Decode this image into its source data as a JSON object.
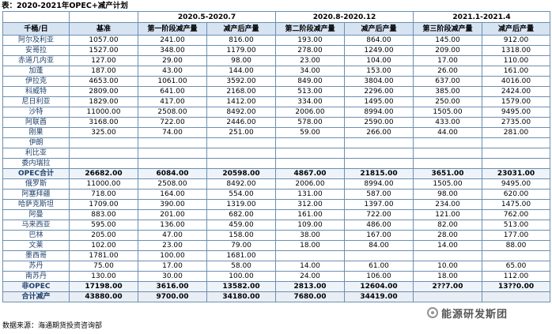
{
  "title": "表：2020-2021年OPEC+减产计划",
  "header": {
    "periods": [
      "2020.5-2020.7",
      "2020.8-2020.12",
      "2021.1-2021.4"
    ],
    "unit_col": "千桶/日",
    "base_col": "基准",
    "phase_cols": [
      "第一阶段减产量",
      "减产后产量",
      "第二阶段减产量",
      "减产后产量",
      "第三阶段减产量",
      "减产后产量"
    ]
  },
  "rows": [
    {
      "name": "阿尔及利亚",
      "cells": [
        "1057.00",
        "241.00",
        "816.00",
        "193.00",
        "864.00",
        "145.00",
        "912.00"
      ]
    },
    {
      "name": "安哥拉",
      "cells": [
        "1527.00",
        "348.00",
        "1179.00",
        "278.00",
        "1249.00",
        "209.00",
        "1318.00"
      ]
    },
    {
      "name": "赤道几内亚",
      "cells": [
        "127.00",
        "29.00",
        "98.00",
        "23.00",
        "104.00",
        "17.00",
        "110.00"
      ]
    },
    {
      "name": "加蓬",
      "cells": [
        "187.00",
        "43.00",
        "144.00",
        "34.00",
        "153.00",
        "26.00",
        "161.00"
      ]
    },
    {
      "name": "伊拉克",
      "cells": [
        "4653.00",
        "1061.00",
        "3592.00",
        "849.00",
        "3804.00",
        "637.00",
        "4016.00"
      ]
    },
    {
      "name": "科威特",
      "cells": [
        "2809.00",
        "641.00",
        "2168.00",
        "513.00",
        "2296.00",
        "385.00",
        "2424.00"
      ]
    },
    {
      "name": "尼日利亚",
      "cells": [
        "1829.00",
        "417.00",
        "1412.00",
        "334.00",
        "1495.00",
        "250.00",
        "1579.00"
      ]
    },
    {
      "name": "沙特",
      "cells": [
        "11000.00",
        "2508.00",
        "8492.00",
        "2006.00",
        "8994.00",
        "1505.00",
        "9495.00"
      ]
    },
    {
      "name": "阿联酋",
      "cells": [
        "3168.00",
        "722.00",
        "2446.00",
        "578.00",
        "2590.00",
        "433.00",
        "2735.00"
      ]
    },
    {
      "name": "刚果",
      "cells": [
        "325.00",
        "74.00",
        "251.00",
        "59.00",
        "266.00",
        "44.00",
        "281.00"
      ]
    },
    {
      "name": "伊朗",
      "cells": [
        "",
        "",
        "",
        "",
        "",
        "",
        ""
      ]
    },
    {
      "name": "利比亚",
      "cells": [
        "",
        "",
        "",
        "",
        "",
        "",
        ""
      ]
    },
    {
      "name": "委内瑞拉",
      "cells": [
        "",
        "",
        "",
        "",
        "",
        "",
        ""
      ]
    },
    {
      "name": "OPEC合计",
      "total": true,
      "cells": [
        "26682.00",
        "6084.00",
        "20598.00",
        "4867.00",
        "21815.00",
        "3651.00",
        "23031.00"
      ]
    },
    {
      "name": "俄罗斯",
      "cells": [
        "11000.00",
        "2508.00",
        "8492.00",
        "2006.00",
        "8994.00",
        "1505.00",
        "9495.00"
      ]
    },
    {
      "name": "阿塞拜疆",
      "cells": [
        "718.00",
        "164.00",
        "554.00",
        "131.00",
        "587.00",
        "98.00",
        "620.00"
      ]
    },
    {
      "name": "哈萨克斯坦",
      "cells": [
        "1709.00",
        "390.00",
        "1319.00",
        "312.00",
        "1397.00",
        "234.00",
        "1475.00"
      ]
    },
    {
      "name": "阿曼",
      "cells": [
        "883.00",
        "201.00",
        "682.00",
        "161.00",
        "722.00",
        "121.00",
        "762.00"
      ]
    },
    {
      "name": "马来西亚",
      "cells": [
        "595.00",
        "136.00",
        "459.00",
        "109.00",
        "486.00",
        "82.00",
        "513.00"
      ]
    },
    {
      "name": "巴林",
      "cells": [
        "205.00",
        "47.00",
        "158.00",
        "38.00",
        "167.00",
        "28.00",
        "177.00"
      ]
    },
    {
      "name": "文莱",
      "cells": [
        "102.00",
        "23.00",
        "79.00",
        "18.00",
        "84.00",
        "14.00",
        "88.00"
      ]
    },
    {
      "name": "墨西哥",
      "cells": [
        "1781.00",
        "100.00",
        "1681.00",
        "",
        "",
        "",
        ""
      ]
    },
    {
      "name": "苏丹",
      "cells": [
        "75.00",
        "17.00",
        "58.00",
        "14.00",
        "61.00",
        "10.00",
        "65.00"
      ]
    },
    {
      "name": "南苏丹",
      "cells": [
        "130.00",
        "30.00",
        "100.00",
        "24.00",
        "106.00",
        "18.00",
        "112.00"
      ]
    },
    {
      "name": "非OPEC",
      "total": true,
      "cells": [
        "17198.00",
        "3616.00",
        "13582.00",
        "2813.00",
        "12604.00",
        "2??7.00",
        "13??0.00"
      ]
    },
    {
      "name": "合计减产",
      "total": true,
      "grand": true,
      "cells": [
        "43880.00",
        "9700.00",
        "34180.00",
        "7680.00",
        "34419.00",
        "",
        ""
      ]
    }
  ],
  "source": "数据来源：海通期货投资咨询部",
  "watermark": "能源研发斯团",
  "colors": {
    "header_bg": "#d6e3f1",
    "border": "#6b8fb0",
    "country_text": "#1f3f6a"
  }
}
